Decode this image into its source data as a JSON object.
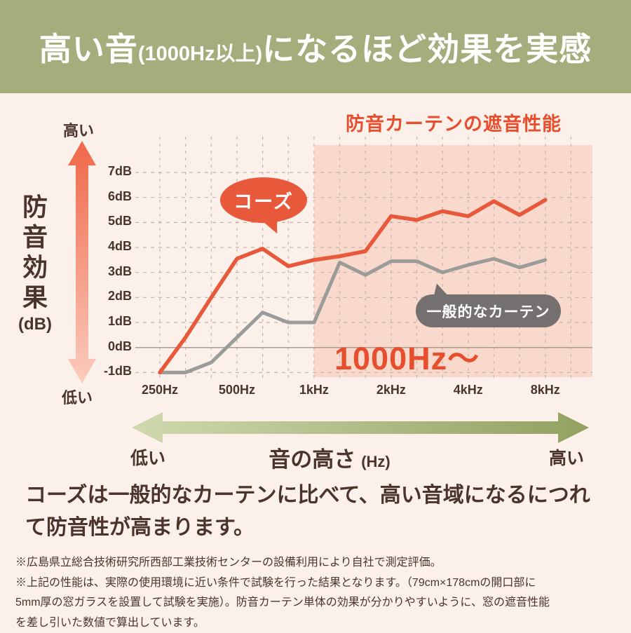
{
  "banner": {
    "title_main_1": "高い音",
    "title_sub": "(1000Hz以上)",
    "title_main_2": "になるほど効果を実感"
  },
  "chart": {
    "title": "防音カーテンの遮音性能",
    "y_axis_label": "防音効果",
    "y_axis_unit": "(dB)",
    "y_high_label": "高い",
    "y_low_label": "低い",
    "callout_product": "コーズ",
    "callout_generic": "一般的なカーテン",
    "highlight_label": "1000Hz〜"
  },
  "chart_data": {
    "type": "line",
    "x": [
      250,
      315,
      400,
      500,
      630,
      800,
      1000,
      1250,
      1600,
      2000,
      2500,
      3150,
      4000,
      5000,
      6300,
      8000
    ],
    "x_tick_labels": [
      "250Hz",
      "500Hz",
      "1kHz",
      "2kHz",
      "4kHz",
      "8kHz"
    ],
    "x_tick_indices": [
      0,
      3,
      6,
      9,
      12,
      15
    ],
    "y_ticks": [
      7,
      6,
      5,
      4,
      3,
      2,
      1,
      0,
      -1
    ],
    "y_tick_labels": [
      "7dB",
      "6dB",
      "5dB",
      "4dB",
      "3dB",
      "2dB",
      "1dB",
      "0dB",
      "-1dB"
    ],
    "ylim": [
      -1,
      8.5
    ],
    "xlabel": "音の高さ (Hz)",
    "ylabel": "防音効果 (dB)",
    "title": "防音カーテンの遮音性能",
    "grid": true,
    "legend_position": "callout-bubbles-on-plot",
    "series": [
      {
        "name": "コーズ",
        "color": "#e8583b",
        "values": [
          -1.0,
          0.4,
          2.0,
          3.55,
          3.95,
          3.25,
          3.5,
          3.65,
          3.85,
          5.25,
          5.1,
          5.45,
          5.25,
          5.85,
          5.3,
          5.9
        ]
      },
      {
        "name": "一般的なカーテン",
        "color": "#9b9b99",
        "values": [
          -1.0,
          -1.0,
          -0.6,
          0.4,
          1.4,
          1.0,
          1.0,
          3.4,
          2.9,
          3.45,
          3.45,
          3.0,
          3.3,
          3.55,
          3.2,
          3.5
        ]
      }
    ],
    "highlight_region": {
      "from_x_index": 6,
      "label": "1000Hz〜",
      "color": "#f8d9cb"
    }
  },
  "x_axis_arrow": {
    "low_label": "低い",
    "label": "音の高さ",
    "unit": "(Hz)",
    "high_label": "高い"
  },
  "description": {
    "lines": [
      "コーズは一般的なカーテンに比べて、高い音域になるにつれ",
      "て防音性が高まります。"
    ]
  },
  "footnotes": {
    "note1": "※広島県立総合技術研究所西部工業技術センターの設備利用により自社で測定評価。",
    "note2_lines": [
      "※上記の性能は、実際の使用環境に近い条件で試験を行った結果となります。（79cm×178cmの開口部に",
      "5mm厚の窓ガラスを設置して試験を実施）。防音カーテン単体の効果が分かりやすいように、窓の遮音性能",
      "を差し引いた数値で算出しています。"
    ]
  },
  "colors": {
    "banner_bg": "#a6ac7b",
    "page_bg": "#fbf1ea",
    "accent_red": "#e8583b",
    "title_red": "#e64e2d",
    "highlight_pink": "#f8d9cb",
    "gray_line": "#9b9b99",
    "gray_bubble": "#757070",
    "text_dark": "#4a342c"
  }
}
